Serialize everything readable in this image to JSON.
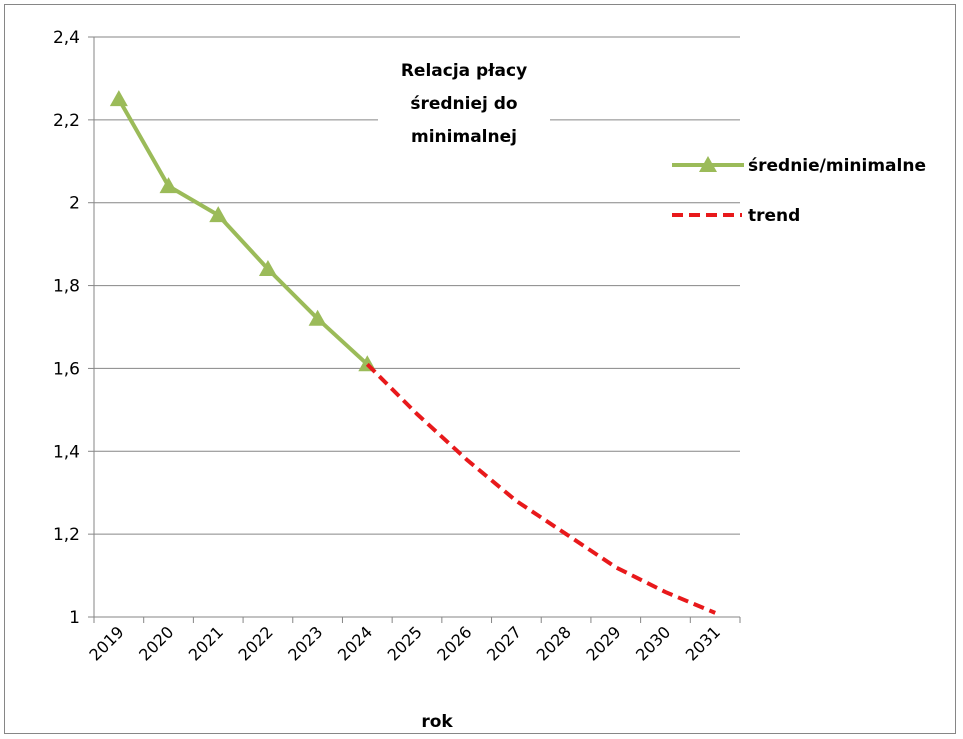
{
  "chart_data": {
    "type": "line",
    "title_lines": [
      "Relacja płacy",
      "średniej do",
      "minimalnej"
    ],
    "xlabel": "rok",
    "ylabel": "",
    "categories": [
      "2019",
      "2020",
      "2021",
      "2022",
      "2023",
      "2024",
      "2025",
      "2026",
      "2027",
      "2028",
      "2029",
      "2030",
      "2031"
    ],
    "ylim": [
      1,
      2.4
    ],
    "yticks": [
      1,
      1.2,
      1.4,
      1.6,
      1.8,
      2,
      2.2,
      2.4
    ],
    "ytick_labels": [
      "1",
      "1,2",
      "1,4",
      "1,6",
      "1,8",
      "2",
      "2,2",
      "2,4"
    ],
    "grid": true,
    "legend_position": "right",
    "series": [
      {
        "name": "średnie/minimalne",
        "color": "#9bbb59",
        "style": "solid",
        "marker": "triangle",
        "values": [
          2.25,
          2.04,
          1.97,
          1.84,
          1.72,
          1.61,
          null,
          null,
          null,
          null,
          null,
          null,
          null
        ]
      },
      {
        "name": "trend",
        "color": "#e8191b",
        "style": "dashed",
        "marker": "none",
        "values": [
          null,
          null,
          null,
          null,
          null,
          1.61,
          1.49,
          1.38,
          1.28,
          1.2,
          1.12,
          1.06,
          1.01
        ]
      }
    ]
  }
}
